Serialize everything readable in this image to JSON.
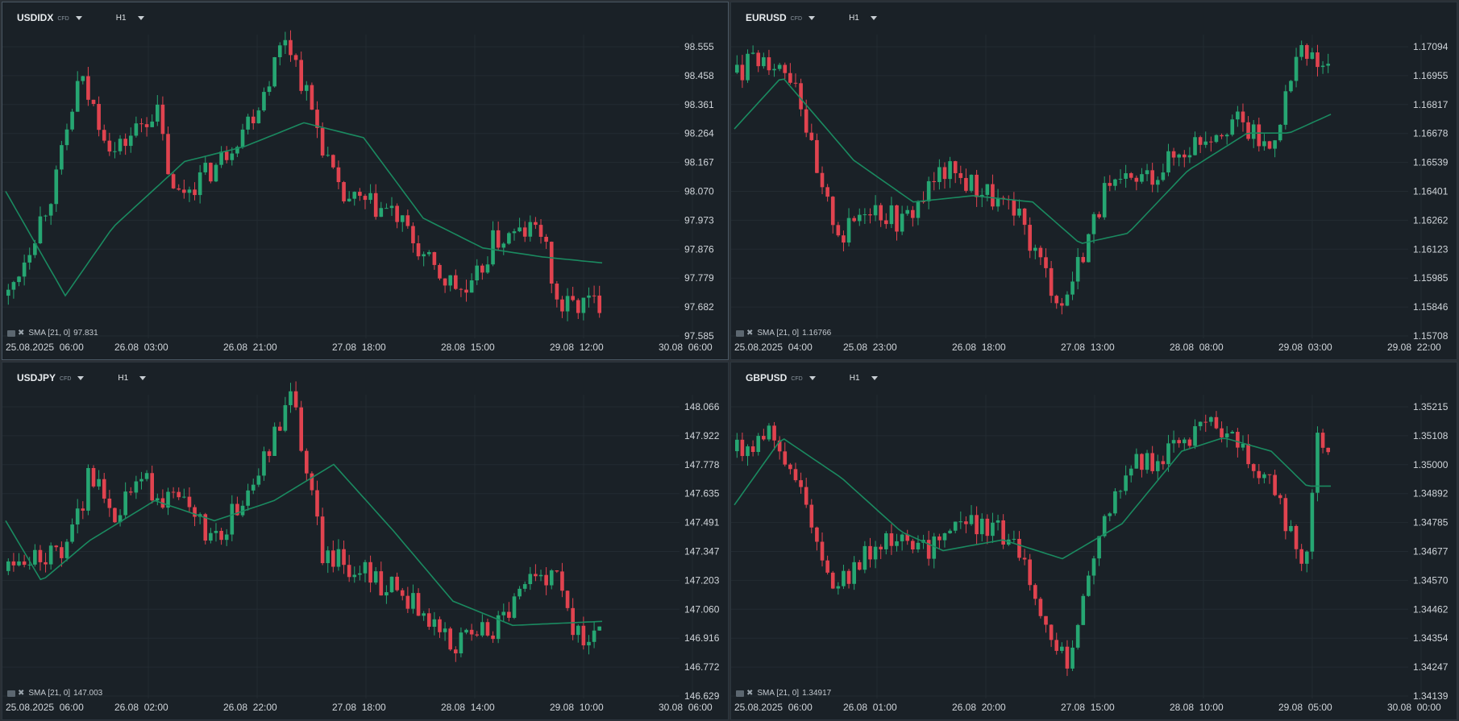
{
  "colors": {
    "up": "#26a672",
    "down": "#e0434f",
    "sma": "#1a8a60",
    "grid": "#232b32",
    "bg": "#1a2127"
  },
  "panels": [
    {
      "symbol": "USDIDX",
      "cfd": "CFD",
      "timeframe": "H1",
      "indicator": {
        "label": "SMA [21, 0]",
        "value": "97.831"
      },
      "y_ticks": [
        "98.555",
        "98.458",
        "98.361",
        "98.264",
        "98.167",
        "98.070",
        "97.973",
        "97.876",
        "97.779",
        "97.682",
        "97.585"
      ],
      "x_ticks": [
        "25.08.2025  06:00",
        "26.08  03:00",
        "26.08  21:00",
        "27.08  18:00",
        "28.08  15:00",
        "29.08  12:00",
        "30.08  06:00"
      ],
      "chart_data": {
        "type": "candlestick",
        "ylim": [
          97.585,
          98.555
        ],
        "start": 97.72,
        "shape": [
          [
            0,
            97.72
          ],
          [
            0.08,
            98.1
          ],
          [
            0.12,
            98.45
          ],
          [
            0.18,
            98.2
          ],
          [
            0.25,
            98.35
          ],
          [
            0.28,
            98.05
          ],
          [
            0.35,
            98.15
          ],
          [
            0.42,
            98.35
          ],
          [
            0.47,
            98.6
          ],
          [
            0.52,
            98.3
          ],
          [
            0.56,
            98.05
          ],
          [
            0.65,
            98.0
          ],
          [
            0.72,
            97.8
          ],
          [
            0.78,
            97.72
          ],
          [
            0.82,
            97.9
          ],
          [
            0.9,
            97.95
          ],
          [
            0.93,
            97.68
          ],
          [
            1.0,
            97.7
          ]
        ],
        "sma": [
          [
            0,
            98.07
          ],
          [
            0.1,
            97.72
          ],
          [
            0.18,
            97.95
          ],
          [
            0.3,
            98.17
          ],
          [
            0.4,
            98.22
          ],
          [
            0.5,
            98.3
          ],
          [
            0.6,
            98.25
          ],
          [
            0.7,
            97.98
          ],
          [
            0.8,
            97.88
          ],
          [
            0.9,
            97.85
          ],
          [
            1.0,
            97.83
          ]
        ]
      }
    },
    {
      "symbol": "EURUSD",
      "cfd": "CFD",
      "timeframe": "H1",
      "indicator": {
        "label": "SMA [21, 0]",
        "value": "1.16766"
      },
      "y_ticks": [
        "1.17094",
        "1.16955",
        "1.16817",
        "1.16678",
        "1.16539",
        "1.16401",
        "1.16262",
        "1.16123",
        "1.15985",
        "1.15846",
        "1.15708"
      ],
      "x_ticks": [
        "25.08.2025  04:00",
        "25.08  23:00",
        "26.08  18:00",
        "27.08  13:00",
        "28.08  08:00",
        "29.08  03:00",
        "29.08  22:00"
      ],
      "chart_data": {
        "type": "candlestick",
        "ylim": [
          1.15708,
          1.17094
        ],
        "start": 1.1697,
        "shape": [
          [
            0,
            1.1697
          ],
          [
            0.05,
            1.1705
          ],
          [
            0.1,
            1.1695
          ],
          [
            0.14,
            1.164
          ],
          [
            0.18,
            1.1618
          ],
          [
            0.22,
            1.1635
          ],
          [
            0.28,
            1.1625
          ],
          [
            0.35,
            1.165
          ],
          [
            0.42,
            1.164
          ],
          [
            0.48,
            1.1625
          ],
          [
            0.55,
            1.1585
          ],
          [
            0.62,
            1.1638
          ],
          [
            0.7,
            1.1648
          ],
          [
            0.78,
            1.1665
          ],
          [
            0.84,
            1.1675
          ],
          [
            0.9,
            1.166
          ],
          [
            0.95,
            1.1705
          ],
          [
            1.0,
            1.1698
          ]
        ],
        "sma": [
          [
            0,
            1.167
          ],
          [
            0.08,
            1.1695
          ],
          [
            0.2,
            1.1655
          ],
          [
            0.3,
            1.1635
          ],
          [
            0.4,
            1.1638
          ],
          [
            0.5,
            1.1635
          ],
          [
            0.58,
            1.1615
          ],
          [
            0.66,
            1.162
          ],
          [
            0.76,
            1.165
          ],
          [
            0.86,
            1.1668
          ],
          [
            0.93,
            1.1668
          ],
          [
            1.0,
            1.1677
          ]
        ]
      }
    },
    {
      "symbol": "USDJPY",
      "cfd": "CFD",
      "timeframe": "H1",
      "indicator": {
        "label": "SMA [21, 0]",
        "value": "147.003"
      },
      "y_ticks": [
        "148.066",
        "147.922",
        "147.778",
        "147.635",
        "147.491",
        "147.347",
        "147.203",
        "147.060",
        "146.916",
        "146.772",
        "146.629"
      ],
      "x_ticks": [
        "25.08.2025  06:00",
        "26.08  02:00",
        "26.08  22:00",
        "27.08  18:00",
        "28.08  14:00",
        "29.08  10:00",
        "30.08  06:00"
      ],
      "chart_data": {
        "type": "candlestick",
        "ylim": [
          146.629,
          148.066
        ],
        "start": 147.25,
        "shape": [
          [
            0,
            147.25
          ],
          [
            0.1,
            147.35
          ],
          [
            0.14,
            147.75
          ],
          [
            0.18,
            147.55
          ],
          [
            0.22,
            147.7
          ],
          [
            0.3,
            147.55
          ],
          [
            0.35,
            147.4
          ],
          [
            0.42,
            147.7
          ],
          [
            0.48,
            148.12
          ],
          [
            0.53,
            147.35
          ],
          [
            0.6,
            147.25
          ],
          [
            0.68,
            147.1
          ],
          [
            0.75,
            146.9
          ],
          [
            0.82,
            146.95
          ],
          [
            0.88,
            147.2
          ],
          [
            0.93,
            147.2
          ],
          [
            0.96,
            146.92
          ],
          [
            1.0,
            146.98
          ]
        ],
        "sma": [
          [
            0,
            147.5
          ],
          [
            0.06,
            147.2
          ],
          [
            0.14,
            147.4
          ],
          [
            0.25,
            147.6
          ],
          [
            0.35,
            147.5
          ],
          [
            0.45,
            147.6
          ],
          [
            0.55,
            147.78
          ],
          [
            0.65,
            147.45
          ],
          [
            0.75,
            147.1
          ],
          [
            0.85,
            146.98
          ],
          [
            1.0,
            147.0
          ]
        ]
      }
    },
    {
      "symbol": "GBPUSD",
      "cfd": "CFD",
      "timeframe": "H1",
      "indicator": {
        "label": "SMA [21, 0]",
        "value": "1.34917"
      },
      "y_ticks": [
        "1.35215",
        "1.35108",
        "1.35000",
        "1.34892",
        "1.34785",
        "1.34677",
        "1.34570",
        "1.34462",
        "1.34354",
        "1.34247",
        "1.34139"
      ],
      "x_ticks": [
        "25.08.2025  06:00",
        "26.08  01:00",
        "26.08  20:00",
        "27.08  15:00",
        "28.08  10:00",
        "29.08  05:00",
        "30.08  00:00"
      ],
      "chart_data": {
        "type": "candlestick",
        "ylim": [
          1.34139,
          1.35215
        ],
        "start": 1.3505,
        "shape": [
          [
            0,
            1.3505
          ],
          [
            0.06,
            1.3512
          ],
          [
            0.12,
            1.3485
          ],
          [
            0.16,
            1.3455
          ],
          [
            0.2,
            1.346
          ],
          [
            0.25,
            1.3475
          ],
          [
            0.3,
            1.3465
          ],
          [
            0.38,
            1.348
          ],
          [
            0.45,
            1.3475
          ],
          [
            0.5,
            1.3455
          ],
          [
            0.56,
            1.3425
          ],
          [
            0.6,
            1.3468
          ],
          [
            0.66,
            1.35
          ],
          [
            0.75,
            1.3505
          ],
          [
            0.8,
            1.3515
          ],
          [
            0.86,
            1.3505
          ],
          [
            0.92,
            1.3485
          ],
          [
            0.96,
            1.346
          ],
          [
            0.98,
            1.351
          ],
          [
            1.0,
            1.3508
          ]
        ],
        "sma": [
          [
            0,
            1.3485
          ],
          [
            0.08,
            1.351
          ],
          [
            0.18,
            1.3495
          ],
          [
            0.28,
            1.3475
          ],
          [
            0.35,
            1.3468
          ],
          [
            0.45,
            1.3472
          ],
          [
            0.55,
            1.3465
          ],
          [
            0.65,
            1.3478
          ],
          [
            0.75,
            1.3505
          ],
          [
            0.82,
            1.351
          ],
          [
            0.9,
            1.3505
          ],
          [
            0.96,
            1.3492
          ],
          [
            1.0,
            1.3492
          ]
        ]
      }
    }
  ]
}
